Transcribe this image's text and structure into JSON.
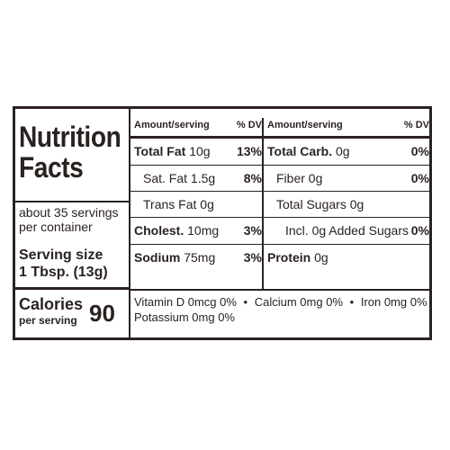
{
  "label": {
    "title_line1": "Nutrition",
    "title_line2": "Facts",
    "servings_line1": "about 35 servings",
    "servings_line2": "per container",
    "serving_size_label": "Serving size",
    "serving_size_value": "1 Tbsp. (13g)",
    "calories_label": "Calories",
    "per_serving": "per serving",
    "calories_value": "90",
    "header_amount": "Amount/serving",
    "header_dv": "% DV",
    "left_rows": [
      {
        "name": "Total Fat",
        "amount": "10g",
        "dv": "13%"
      },
      {
        "name": "Sat. Fat",
        "amount": "1.5g",
        "dv": "8%"
      },
      {
        "name": "Trans Fat",
        "amount": "0g",
        "dv": ""
      },
      {
        "name": "Cholest.",
        "amount": "10mg",
        "dv": "3%"
      },
      {
        "name": "Sodium",
        "amount": "75mg",
        "dv": "3%"
      }
    ],
    "right_rows": [
      {
        "name": "Total Carb.",
        "amount": "0g",
        "dv": "0%"
      },
      {
        "name": "Fiber",
        "amount": "0g",
        "dv": "0%"
      },
      {
        "name": "Total Sugars",
        "amount": "0g",
        "dv": ""
      },
      {
        "name": "Incl. 0g Added Sugars",
        "amount": "",
        "dv": "0%"
      },
      {
        "name": "Protein",
        "amount": "0g",
        "dv": ""
      }
    ],
    "vitamins": {
      "vitamin_d": "Vitamin D 0mcg 0%",
      "calcium": "Calcium 0mg 0%",
      "iron": "Iron 0mg 0%",
      "potassium": "Potassium 0mg 0%",
      "separator": "•"
    }
  }
}
